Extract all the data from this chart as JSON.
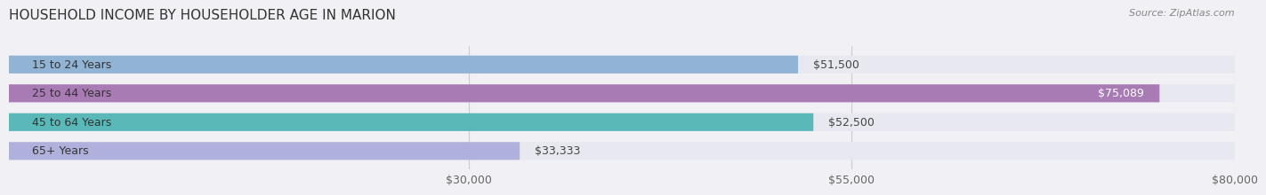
{
  "title": "HOUSEHOLD INCOME BY HOUSEHOLDER AGE IN MARION",
  "source": "Source: ZipAtlas.com",
  "categories": [
    "15 to 24 Years",
    "25 to 44 Years",
    "45 to 64 Years",
    "65+ Years"
  ],
  "values": [
    51500,
    75089,
    52500,
    33333
  ],
  "bar_colors": [
    "#92b4d4",
    "#a97bb5",
    "#5bb8b8",
    "#b0b0dc"
  ],
  "bar_labels": [
    "$51,500",
    "$75,089",
    "$52,500",
    "$33,333"
  ],
  "xmin": 0,
  "xmax": 80000,
  "xticks": [
    30000,
    55000,
    80000
  ],
  "xtick_labels": [
    "$30,000",
    "$55,000",
    "$80,000"
  ],
  "background_color": "#f0f0f5",
  "bar_bg_color": "#e8e8f0",
  "title_fontsize": 11,
  "source_fontsize": 8,
  "label_fontsize": 9,
  "tick_fontsize": 9
}
